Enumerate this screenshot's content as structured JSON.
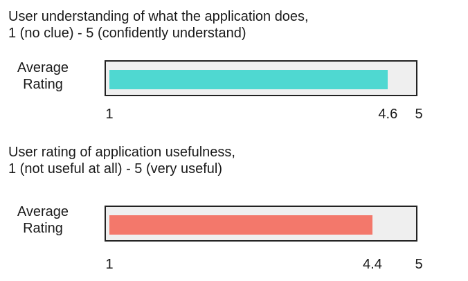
{
  "chart_data": [
    {
      "type": "bar",
      "orientation": "horizontal",
      "title_lines": [
        "User understanding of what the application does,",
        "1 (no clue) - 5 (confidently understand)"
      ],
      "categories": [
        "Average Rating"
      ],
      "category_lines": [
        "Average",
        "Rating"
      ],
      "values": [
        4.6
      ],
      "xlim": [
        1,
        5
      ],
      "ticks": [
        "1",
        "4.6",
        "5"
      ],
      "tick_values": [
        1,
        4.6,
        5
      ],
      "bar_color": "#4fd8d1",
      "track_color": "#efefef",
      "grid": false
    },
    {
      "type": "bar",
      "orientation": "horizontal",
      "title_lines": [
        "User rating of application usefulness,",
        "1 (not useful at all) - 5 (very useful)"
      ],
      "categories": [
        "Average Rating"
      ],
      "category_lines": [
        "Average",
        "Rating"
      ],
      "values": [
        4.4
      ],
      "xlim": [
        1,
        5
      ],
      "ticks": [
        "1",
        "4.4",
        "5"
      ],
      "tick_values": [
        1,
        4.4,
        5
      ],
      "bar_color": "#f3786b",
      "track_color": "#efefef",
      "grid": false
    }
  ]
}
